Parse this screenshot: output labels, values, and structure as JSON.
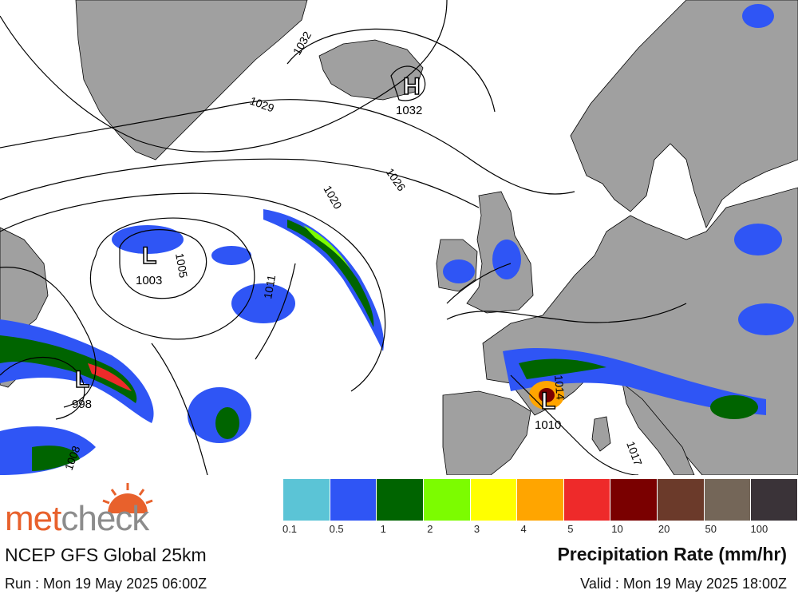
{
  "map": {
    "isobar_labels": [
      {
        "text": "1032"
      },
      {
        "text": "1029"
      },
      {
        "text": "1026"
      },
      {
        "text": "1020"
      },
      {
        "text": "1005"
      },
      {
        "text": "1011"
      },
      {
        "text": "1017"
      },
      {
        "text": "1008"
      },
      {
        "text": "1014"
      }
    ],
    "pressure_centres": [
      {
        "type": "H",
        "value": "1032"
      },
      {
        "type": "L",
        "value": "1003"
      },
      {
        "type": "L",
        "value": "998"
      },
      {
        "type": "L",
        "value": "1010"
      }
    ],
    "colors": {
      "sea": "#ffffff",
      "land": "#a0a0a0",
      "isobar": "#000000"
    }
  },
  "footer": {
    "logo_met": "met",
    "logo_check": "check",
    "model": "NCEP GFS Global 25km",
    "run": "Run : Mon 19 May 2025 06:00Z",
    "valid": "Valid : Mon 19 May 2025 18:00Z",
    "title": "Precipitation Rate (mm/hr)"
  },
  "legend": {
    "colors": [
      "#5bc4d6",
      "#2f55f5",
      "#006400",
      "#7cfc00",
      "#ffff00",
      "#ffa500",
      "#ee2a2a",
      "#7a0000",
      "#6b3a2a",
      "#746658",
      "#3a3338"
    ],
    "labels": [
      "0.1",
      "0.5",
      "1",
      "2",
      "3",
      "4",
      "5",
      "10",
      "20",
      "50",
      "100"
    ]
  }
}
